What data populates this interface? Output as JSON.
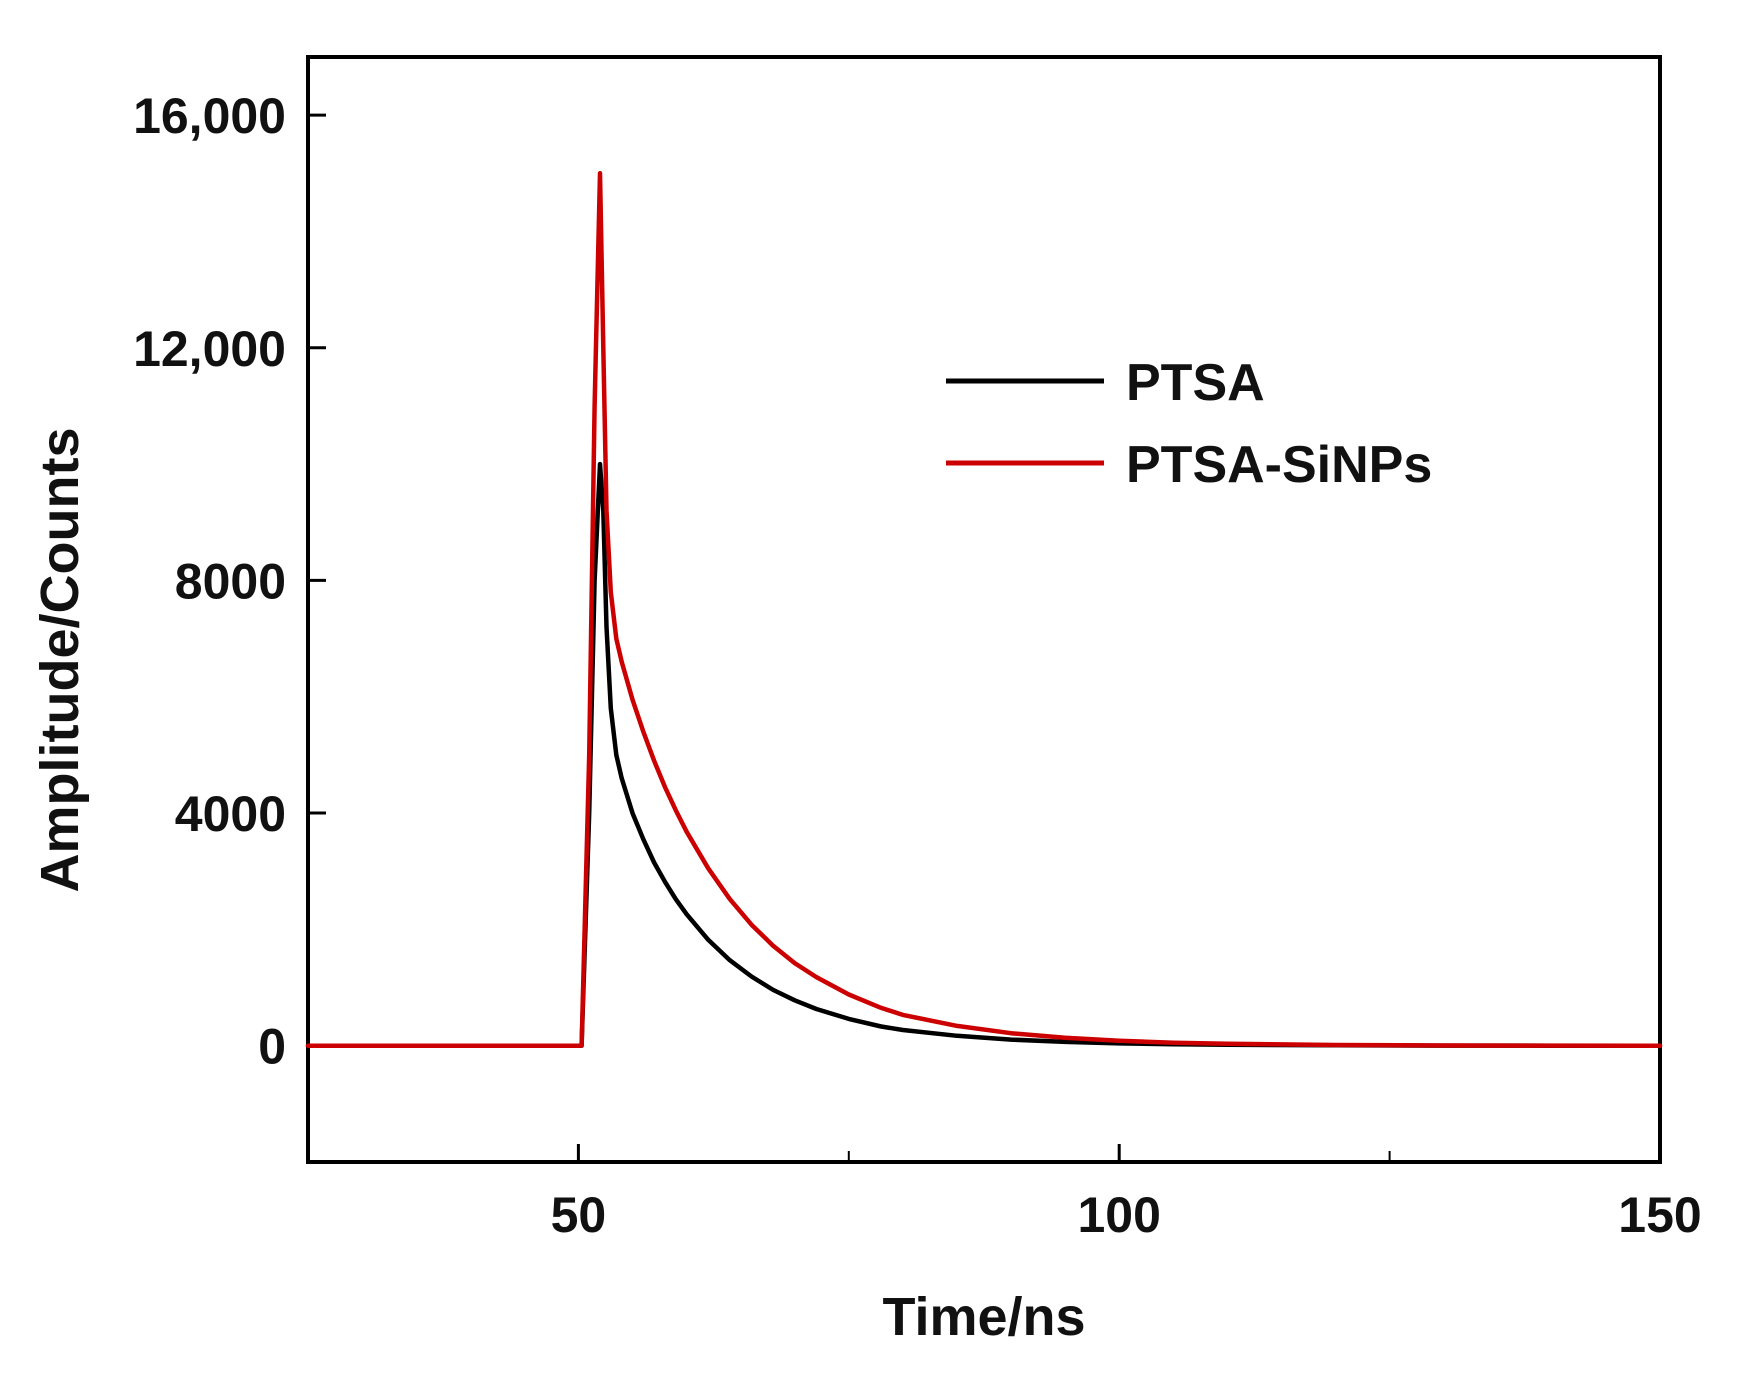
{
  "chart_data": {
    "type": "line",
    "title": "",
    "xlabel": "Time/ns",
    "ylabel": "Amplitude/Counts",
    "xlim": [
      25,
      150
    ],
    "ylim": [
      -2000,
      17000
    ],
    "xticks": [
      50,
      100,
      150
    ],
    "xtick_labels": [
      "50",
      "100",
      "150"
    ],
    "x_minor_ticks": [
      75,
      125
    ],
    "yticks": [
      0,
      4000,
      8000,
      12000,
      16000
    ],
    "ytick_labels": [
      "0",
      "4000",
      "8000",
      "12,000",
      "16,000"
    ],
    "legend_position": "top-right",
    "grid": false,
    "series": [
      {
        "name": "PTSA",
        "color": "#000000",
        "x": [
          25,
          50.3,
          51.0,
          51.5,
          52.0,
          52.3,
          52.6,
          53.0,
          53.5,
          54,
          55,
          56,
          57,
          58,
          59,
          60,
          62,
          64,
          66,
          68,
          70,
          72,
          75,
          78,
          80,
          85,
          90,
          95,
          100,
          105,
          110,
          120,
          130,
          140,
          150
        ],
        "y": [
          0,
          0,
          4000,
          8000,
          10000,
          9200,
          7200,
          5800,
          5000,
          4600,
          4000,
          3550,
          3150,
          2820,
          2520,
          2260,
          1820,
          1470,
          1190,
          960,
          780,
          630,
          460,
          330,
          270,
          170,
          105,
          65,
          40,
          25,
          15,
          6,
          2,
          0,
          0
        ]
      },
      {
        "name": "PTSA-SiNPs",
        "color": "#cc0000",
        "x": [
          25,
          50.3,
          51.0,
          51.5,
          52.0,
          52.3,
          52.6,
          53.0,
          53.5,
          54,
          55,
          56,
          57,
          58,
          59,
          60,
          62,
          64,
          66,
          68,
          70,
          72,
          75,
          78,
          80,
          85,
          90,
          95,
          100,
          105,
          110,
          120,
          130,
          140,
          150
        ],
        "y": [
          0,
          0,
          5000,
          11000,
          15000,
          12000,
          9200,
          7800,
          7000,
          6600,
          5950,
          5400,
          4900,
          4450,
          4050,
          3680,
          3050,
          2520,
          2080,
          1720,
          1420,
          1180,
          880,
          650,
          530,
          340,
          215,
          135,
          85,
          52,
          32,
          12,
          4,
          1,
          0
        ]
      }
    ]
  }
}
